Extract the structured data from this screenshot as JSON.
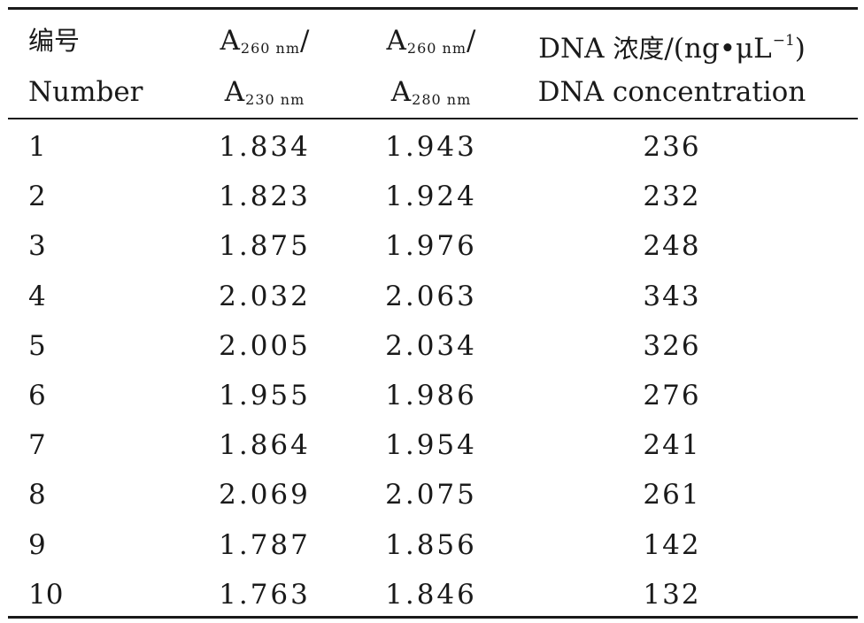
{
  "table": {
    "header": {
      "col1": {
        "line1": "编号",
        "line2": "Number"
      },
      "col2": {
        "line1_main": "A",
        "line1_sub": "260 nm",
        "line1_tail": "/",
        "line2_main": "A",
        "line2_sub": "230 nm"
      },
      "col3": {
        "line1_main": "A",
        "line1_sub": "260 nm",
        "line1_tail": "/",
        "line2_main": "A",
        "line2_sub": "280 nm"
      },
      "col4": {
        "line1_pre": "DNA ",
        "line1_cjk": "浓度",
        "line1_unit": "/(ng•μL",
        "line1_sup": "−1",
        "line1_close": ")",
        "line2": "DNA concentration"
      }
    },
    "rows": [
      {
        "number": "1",
        "a260_230": "1.834",
        "a260_280": "1.943",
        "concentration": "236"
      },
      {
        "number": "2",
        "a260_230": "1.823",
        "a260_280": "1.924",
        "concentration": "232"
      },
      {
        "number": "3",
        "a260_230": "1.875",
        "a260_280": "1.976",
        "concentration": "248"
      },
      {
        "number": "4",
        "a260_230": "2.032",
        "a260_280": "2.063",
        "concentration": "343"
      },
      {
        "number": "5",
        "a260_230": "2.005",
        "a260_280": "2.034",
        "concentration": "326"
      },
      {
        "number": "6",
        "a260_230": "1.955",
        "a260_280": "1.986",
        "concentration": "276"
      },
      {
        "number": "7",
        "a260_230": "1.864",
        "a260_280": "1.954",
        "concentration": "241"
      },
      {
        "number": "8",
        "a260_230": "2.069",
        "a260_280": "2.075",
        "concentration": "261"
      },
      {
        "number": "9",
        "a260_230": "1.787",
        "a260_280": "1.856",
        "concentration": "142"
      },
      {
        "number": "10",
        "a260_230": "1.763",
        "a260_280": "1.846",
        "concentration": "132"
      }
    ]
  }
}
